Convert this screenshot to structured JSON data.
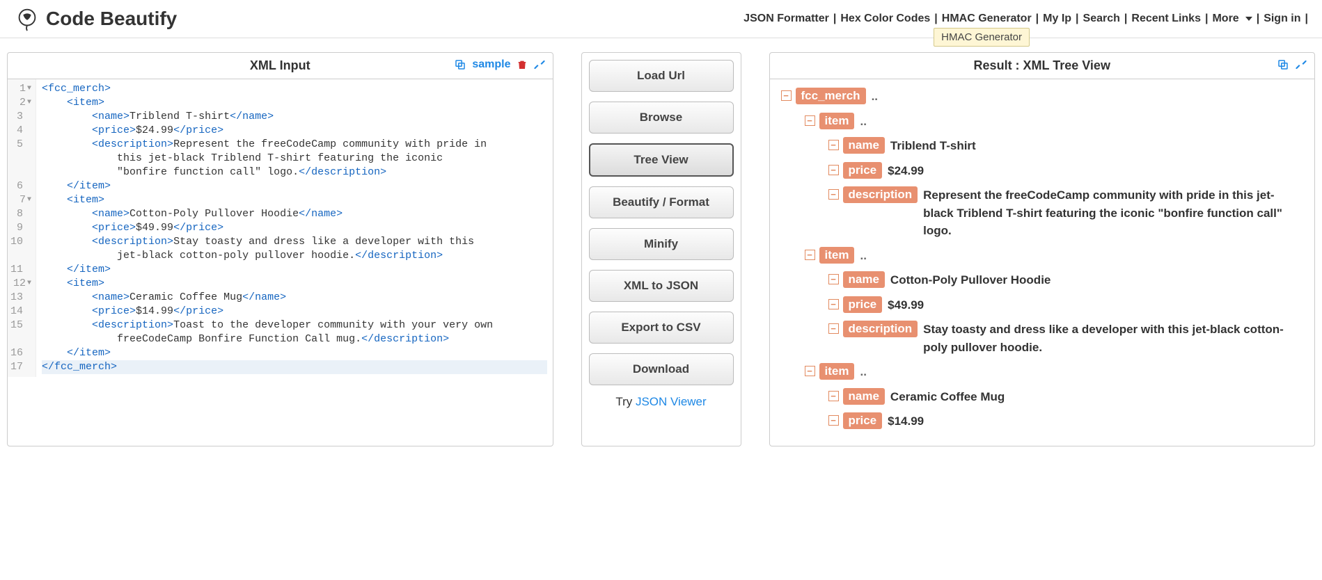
{
  "brand": "Code Beautify",
  "nav": {
    "items": [
      "JSON Formatter",
      "Hex Color Codes",
      "HMAC Generator",
      "My Ip",
      "Search",
      "Recent Links",
      "More",
      "Sign in"
    ]
  },
  "tooltip": "HMAC Generator",
  "left": {
    "title": "XML Input",
    "sample_label": "sample",
    "code_lines": [
      {
        "n": 1,
        "fold": true,
        "indent": 0,
        "parts": [
          {
            "t": "tag",
            "v": "<fcc_merch>"
          }
        ]
      },
      {
        "n": 2,
        "fold": true,
        "indent": 1,
        "parts": [
          {
            "t": "tag",
            "v": "<item>"
          }
        ]
      },
      {
        "n": 3,
        "fold": false,
        "indent": 2,
        "parts": [
          {
            "t": "tag",
            "v": "<name>"
          },
          {
            "t": "txt",
            "v": "Triblend T-shirt"
          },
          {
            "t": "tag",
            "v": "</name>"
          }
        ]
      },
      {
        "n": 4,
        "fold": false,
        "indent": 2,
        "parts": [
          {
            "t": "tag",
            "v": "<price>"
          },
          {
            "t": "txt",
            "v": "$24.99"
          },
          {
            "t": "tag",
            "v": "</price>"
          }
        ]
      },
      {
        "n": 5,
        "fold": false,
        "indent": 2,
        "parts": [
          {
            "t": "tag",
            "v": "<description>"
          },
          {
            "t": "txt",
            "v": "Represent the freeCodeCamp community with pride in"
          }
        ]
      },
      {
        "n": null,
        "fold": false,
        "indent": 3,
        "parts": [
          {
            "t": "txt",
            "v": "this jet-black Triblend T-shirt featuring the iconic"
          }
        ]
      },
      {
        "n": null,
        "fold": false,
        "indent": 3,
        "parts": [
          {
            "t": "txt",
            "v": "\"bonfire function call\" logo."
          },
          {
            "t": "tag",
            "v": "</description>"
          }
        ]
      },
      {
        "n": 6,
        "fold": false,
        "indent": 1,
        "parts": [
          {
            "t": "tag",
            "v": "</item>"
          }
        ]
      },
      {
        "n": 7,
        "fold": true,
        "indent": 1,
        "parts": [
          {
            "t": "tag",
            "v": "<item>"
          }
        ]
      },
      {
        "n": 8,
        "fold": false,
        "indent": 2,
        "parts": [
          {
            "t": "tag",
            "v": "<name>"
          },
          {
            "t": "txt",
            "v": "Cotton-Poly Pullover Hoodie"
          },
          {
            "t": "tag",
            "v": "</name>"
          }
        ]
      },
      {
        "n": 9,
        "fold": false,
        "indent": 2,
        "parts": [
          {
            "t": "tag",
            "v": "<price>"
          },
          {
            "t": "txt",
            "v": "$49.99"
          },
          {
            "t": "tag",
            "v": "</price>"
          }
        ]
      },
      {
        "n": 10,
        "fold": false,
        "indent": 2,
        "parts": [
          {
            "t": "tag",
            "v": "<description>"
          },
          {
            "t": "txt",
            "v": "Stay toasty and dress like a developer with this"
          }
        ]
      },
      {
        "n": null,
        "fold": false,
        "indent": 3,
        "parts": [
          {
            "t": "txt",
            "v": "jet-black cotton-poly pullover hoodie."
          },
          {
            "t": "tag",
            "v": "</description>"
          }
        ]
      },
      {
        "n": 11,
        "fold": false,
        "indent": 1,
        "parts": [
          {
            "t": "tag",
            "v": "</item>"
          }
        ]
      },
      {
        "n": 12,
        "fold": true,
        "indent": 1,
        "parts": [
          {
            "t": "tag",
            "v": "<item>"
          }
        ]
      },
      {
        "n": 13,
        "fold": false,
        "indent": 2,
        "parts": [
          {
            "t": "tag",
            "v": "<name>"
          },
          {
            "t": "txt",
            "v": "Ceramic Coffee Mug"
          },
          {
            "t": "tag",
            "v": "</name>"
          }
        ]
      },
      {
        "n": 14,
        "fold": false,
        "indent": 2,
        "parts": [
          {
            "t": "tag",
            "v": "<price>"
          },
          {
            "t": "txt",
            "v": "$14.99"
          },
          {
            "t": "tag",
            "v": "</price>"
          }
        ]
      },
      {
        "n": 15,
        "fold": false,
        "indent": 2,
        "parts": [
          {
            "t": "tag",
            "v": "<description>"
          },
          {
            "t": "txt",
            "v": "Toast to the developer community with your very own"
          }
        ]
      },
      {
        "n": null,
        "fold": false,
        "indent": 3,
        "parts": [
          {
            "t": "txt",
            "v": "freeCodeCamp Bonfire Function Call mug."
          },
          {
            "t": "tag",
            "v": "</description>"
          }
        ]
      },
      {
        "n": 16,
        "fold": false,
        "indent": 1,
        "parts": [
          {
            "t": "tag",
            "v": "</item>"
          }
        ]
      },
      {
        "n": 17,
        "fold": false,
        "indent": 0,
        "hl": true,
        "parts": [
          {
            "t": "tag",
            "v": "</fcc_merch>"
          }
        ]
      }
    ]
  },
  "actions": {
    "buttons": [
      {
        "label": "Load Url",
        "active": false
      },
      {
        "label": "Browse",
        "active": false
      },
      {
        "label": "Tree View",
        "active": true
      },
      {
        "label": "Beautify / Format",
        "active": false
      },
      {
        "label": "Minify",
        "active": false
      },
      {
        "label": "XML to JSON",
        "active": false
      },
      {
        "label": "Export to CSV",
        "active": false
      },
      {
        "label": "Download",
        "active": false
      }
    ],
    "try_text": "Try ",
    "try_link": "JSON Viewer"
  },
  "right": {
    "title": "Result : XML Tree View",
    "nodes": [
      {
        "depth": 0,
        "tag": "fcc_merch",
        "val": "..",
        "dots": true
      },
      {
        "depth": 1,
        "tag": "item",
        "val": "..",
        "dots": true
      },
      {
        "depth": 2,
        "tag": "name",
        "val": "Triblend T-shirt"
      },
      {
        "depth": 2,
        "tag": "price",
        "val": "$24.99"
      },
      {
        "depth": 2,
        "tag": "description",
        "val": "Represent the freeCodeCamp community with pride in this jet-black Triblend T-shirt featuring the iconic \"bonfire function call\" logo."
      },
      {
        "depth": 1,
        "tag": "item",
        "val": "..",
        "dots": true
      },
      {
        "depth": 2,
        "tag": "name",
        "val": "Cotton-Poly Pullover Hoodie"
      },
      {
        "depth": 2,
        "tag": "price",
        "val": "$49.99"
      },
      {
        "depth": 2,
        "tag": "description",
        "val": "Stay toasty and dress like a developer with this jet-black cotton-poly pullover hoodie."
      },
      {
        "depth": 1,
        "tag": "item",
        "val": "..",
        "dots": true
      },
      {
        "depth": 2,
        "tag": "name",
        "val": "Ceramic Coffee Mug"
      },
      {
        "depth": 2,
        "tag": "price",
        "val": "$14.99"
      }
    ]
  },
  "colors": {
    "tag_bg": "#e89070",
    "link": "#1e88e5",
    "code_tag": "#1565c0",
    "trash": "#d32f2f"
  }
}
